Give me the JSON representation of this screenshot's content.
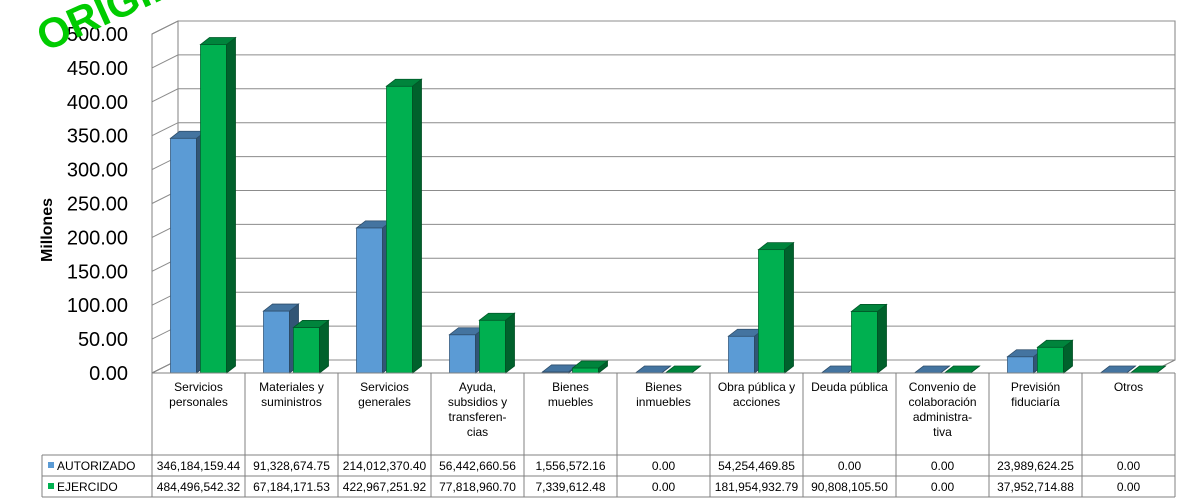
{
  "chart_data": {
    "type": "bar",
    "ylabel": "Millones",
    "ylim": [
      0,
      500
    ],
    "yticks": [
      "0.00",
      "50.00",
      "100.00",
      "150.00",
      "200.00",
      "250.00",
      "300.00",
      "350.00",
      "400.00",
      "450.00",
      "500.00"
    ],
    "grid": true,
    "legend": "left of data table",
    "categories": [
      [
        "Servicios",
        "personales"
      ],
      [
        "Materiales y",
        "suministros"
      ],
      [
        "Servicios",
        "generales"
      ],
      [
        "Ayuda,",
        "subsidios y",
        "transferen-",
        "cias"
      ],
      [
        "Bienes",
        "muebles"
      ],
      [
        "Bienes",
        "inmuebles"
      ],
      [
        "Obra pública y",
        "acciones"
      ],
      [
        "Deuda pública"
      ],
      [
        "Convenio de",
        "colaboración",
        "administra-",
        "tiva"
      ],
      [
        "Previsión",
        "fiduciaría"
      ],
      [
        "Otros"
      ]
    ],
    "series": [
      {
        "name": "AUTORIZADO",
        "color": "#5b9bd5",
        "values": [
          346.18415944,
          91.32867475,
          214.0123704,
          56.44266056,
          1.55657216,
          0,
          54.25446985,
          0,
          0,
          23.98962425,
          0
        ],
        "labels": [
          "346,184,159.44",
          "91,328,674.75",
          "214,012,370.40",
          "56,442,660.56",
          "1,556,572.16",
          "0.00",
          "54,254,469.85",
          "0.00",
          "0.00",
          "23,989,624.25",
          "0.00"
        ]
      },
      {
        "name": "EJERCIDO",
        "color": "#00b050",
        "values": [
          484.49654232,
          67.18417153,
          422.96725192,
          77.8189607,
          7.33961248,
          0,
          181.95493279,
          90.8081055,
          0,
          37.95271488,
          0
        ],
        "labels": [
          "484,496,542.32",
          "67,184,171.53",
          "422,967,251.92",
          "77,818,960.70",
          "7,339,612.48",
          "0.00",
          "181,954,932.79",
          "90,808,105.50",
          "0.00",
          "37,952,714.88",
          "0.00"
        ]
      }
    ]
  },
  "watermark": "ORIGINAL"
}
